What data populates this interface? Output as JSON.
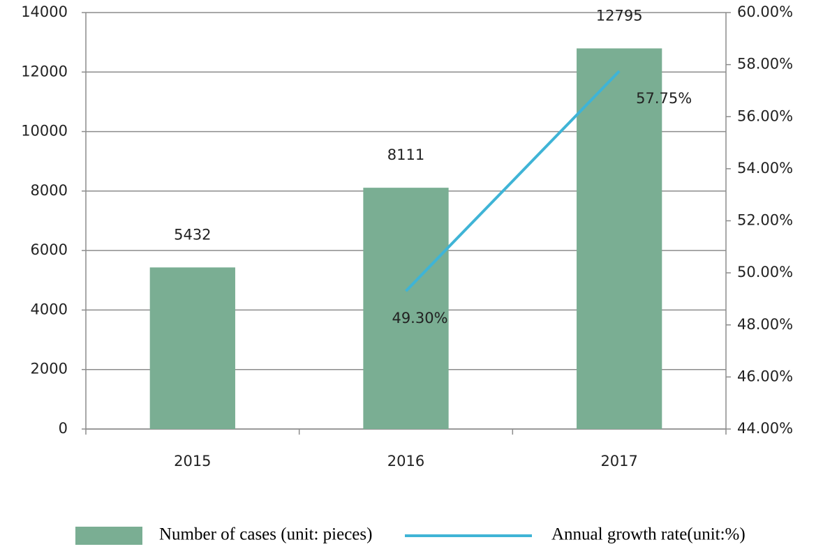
{
  "chart_data": {
    "type": "bar+line",
    "categories": [
      "2015",
      "2016",
      "2017"
    ],
    "series": [
      {
        "name": "Number of cases (unit: pieces)",
        "type": "bar",
        "color": "#7aae93",
        "values": [
          5432,
          8111,
          12795
        ]
      },
      {
        "name": "Annual growth rate(unit:%)",
        "type": "line",
        "axis": "y2",
        "color": "#3fb4d6",
        "values": [
          null,
          49.3,
          57.75
        ],
        "value_labels": [
          null,
          "49.30%",
          "57.75%"
        ]
      }
    ],
    "ylim": [
      0,
      14000
    ],
    "yticks": [
      0,
      2000,
      4000,
      6000,
      8000,
      10000,
      12000,
      14000
    ],
    "y2lim": [
      44,
      60
    ],
    "y2ticks": [
      {
        "value": 44,
        "label": "44.00%"
      },
      {
        "value": 46,
        "label": "46.00%"
      },
      {
        "value": 48,
        "label": "48.00%"
      },
      {
        "value": 50,
        "label": "50.00%"
      },
      {
        "value": 52,
        "label": "52.00%"
      },
      {
        "value": 54,
        "label": "54.00%"
      },
      {
        "value": 56,
        "label": "56.00%"
      },
      {
        "value": 58,
        "label": "58.00%"
      },
      {
        "value": 60,
        "label": "60.00%"
      }
    ],
    "grid": true,
    "legend": "bottom"
  }
}
